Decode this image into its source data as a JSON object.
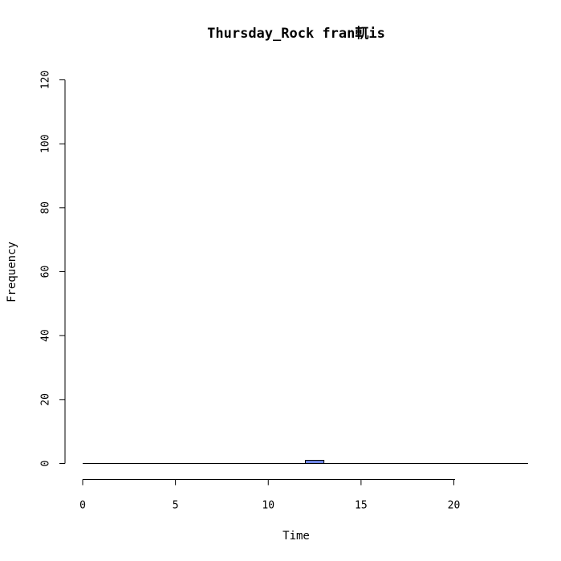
{
  "chart_data": {
    "type": "histogram",
    "title": "Thursday_Rock fran軏is",
    "xlabel": "Time",
    "ylabel": "Frequency",
    "x_ticks": [
      0,
      5,
      10,
      15,
      20
    ],
    "y_ticks": [
      0,
      20,
      40,
      60,
      80,
      100,
      120
    ],
    "xlim": [
      0,
      24
    ],
    "ylim": [
      0,
      120
    ],
    "bin_width": 1,
    "bins": [
      {
        "start": 0,
        "end": 1,
        "value": 0
      },
      {
        "start": 1,
        "end": 2,
        "value": 0
      },
      {
        "start": 2,
        "end": 3,
        "value": 0
      },
      {
        "start": 3,
        "end": 4,
        "value": 0
      },
      {
        "start": 4,
        "end": 5,
        "value": 0
      },
      {
        "start": 5,
        "end": 6,
        "value": 0
      },
      {
        "start": 6,
        "end": 7,
        "value": 0
      },
      {
        "start": 7,
        "end": 8,
        "value": 0
      },
      {
        "start": 8,
        "end": 9,
        "value": 0
      },
      {
        "start": 9,
        "end": 10,
        "value": 0
      },
      {
        "start": 10,
        "end": 11,
        "value": 0
      },
      {
        "start": 11,
        "end": 12,
        "value": 0
      },
      {
        "start": 12,
        "end": 13,
        "value": 1
      },
      {
        "start": 13,
        "end": 14,
        "value": 0
      },
      {
        "start": 14,
        "end": 15,
        "value": 0
      },
      {
        "start": 15,
        "end": 16,
        "value": 0
      },
      {
        "start": 16,
        "end": 17,
        "value": 0
      },
      {
        "start": 17,
        "end": 18,
        "value": 0
      },
      {
        "start": 18,
        "end": 19,
        "value": 0
      },
      {
        "start": 19,
        "end": 20,
        "value": 0
      },
      {
        "start": 20,
        "end": 21,
        "value": 0
      },
      {
        "start": 21,
        "end": 22,
        "value": 0
      },
      {
        "start": 22,
        "end": 23,
        "value": 0
      },
      {
        "start": 23,
        "end": 24,
        "value": 0
      }
    ],
    "bar_color": "#6f86e6",
    "axis_color": "#000000",
    "background": "#ffffff",
    "grid": false,
    "legend": "none"
  }
}
